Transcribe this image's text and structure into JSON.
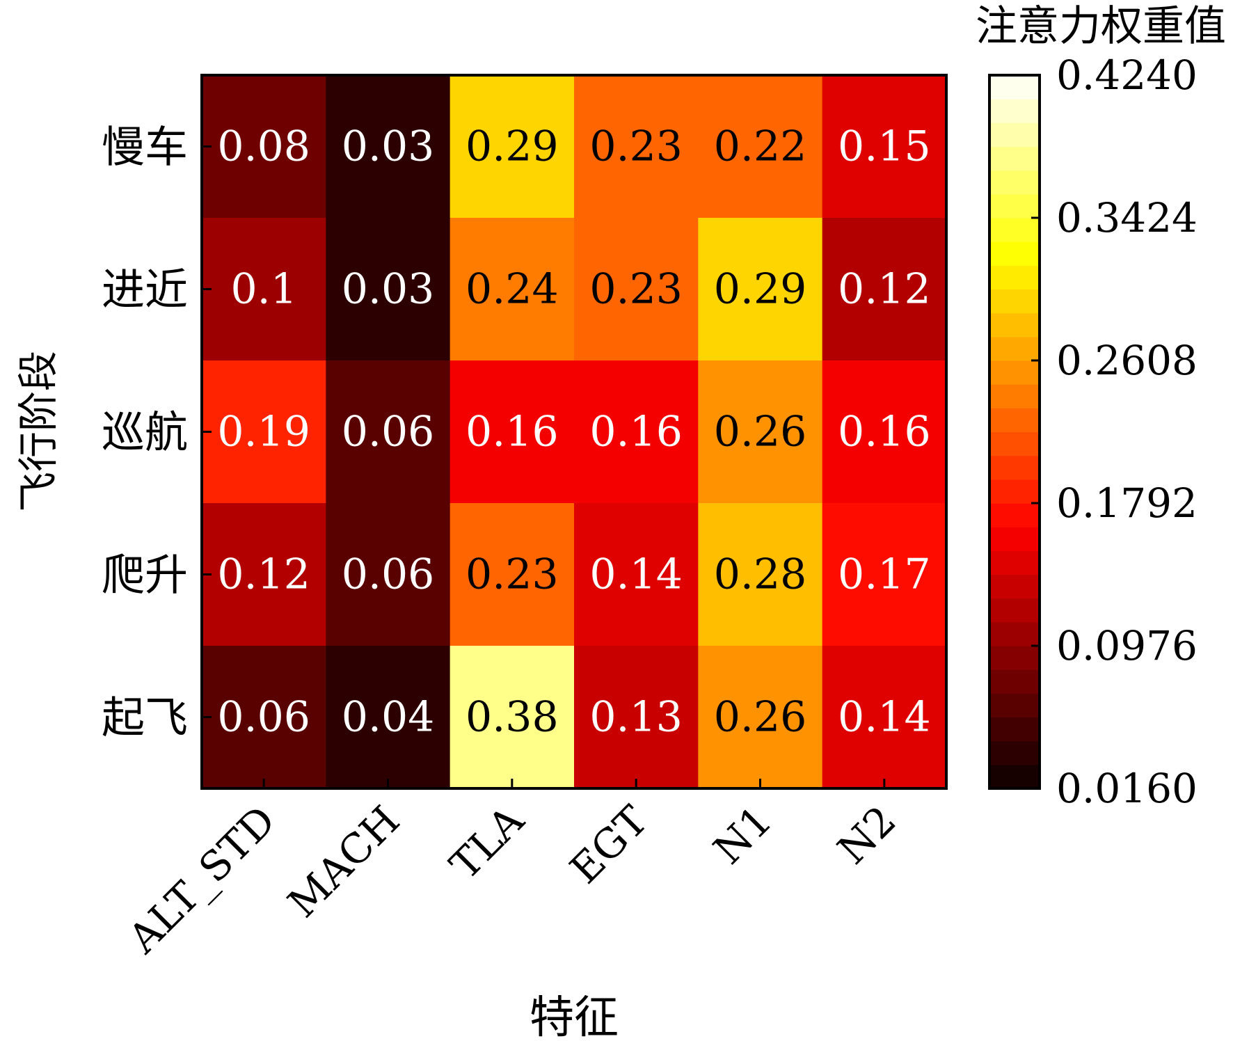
{
  "chart_data": {
    "type": "heatmap",
    "xlabel": "特征",
    "ylabel": "飞行阶段",
    "x_categories": [
      "ALT_STD",
      "MACH",
      "TLA",
      "EGT",
      "N1",
      "N2"
    ],
    "y_categories": [
      "慢车",
      "进近",
      "巡航",
      "爬升",
      "起飞"
    ],
    "values": [
      [
        0.08,
        0.03,
        0.29,
        0.23,
        0.22,
        0.15
      ],
      [
        0.1,
        0.03,
        0.24,
        0.23,
        0.29,
        0.12
      ],
      [
        0.19,
        0.06,
        0.16,
        0.16,
        0.26,
        0.16
      ],
      [
        0.12,
        0.06,
        0.23,
        0.14,
        0.28,
        0.17
      ],
      [
        0.06,
        0.04,
        0.38,
        0.13,
        0.26,
        0.14
      ]
    ],
    "value_labels": [
      [
        "0.08",
        "0.03",
        "0.29",
        "0.23",
        "0.22",
        "0.15"
      ],
      [
        "0.1",
        "0.03",
        "0.24",
        "0.23",
        "0.29",
        "0.12"
      ],
      [
        "0.19",
        "0.06",
        "0.16",
        "0.16",
        "0.26",
        "0.16"
      ],
      [
        "0.12",
        "0.06",
        "0.23",
        "0.14",
        "0.28",
        "0.17"
      ],
      [
        "0.06",
        "0.04",
        "0.38",
        "0.13",
        "0.26",
        "0.14"
      ]
    ],
    "colorbar": {
      "title": "注意力权重值",
      "min": 0.016,
      "max": 0.424,
      "ticks": [
        "0.4240",
        "0.3424",
        "0.2608",
        "0.1792",
        "0.0976",
        "0.0160"
      ],
      "colormap": "hot",
      "levels": 30
    }
  }
}
